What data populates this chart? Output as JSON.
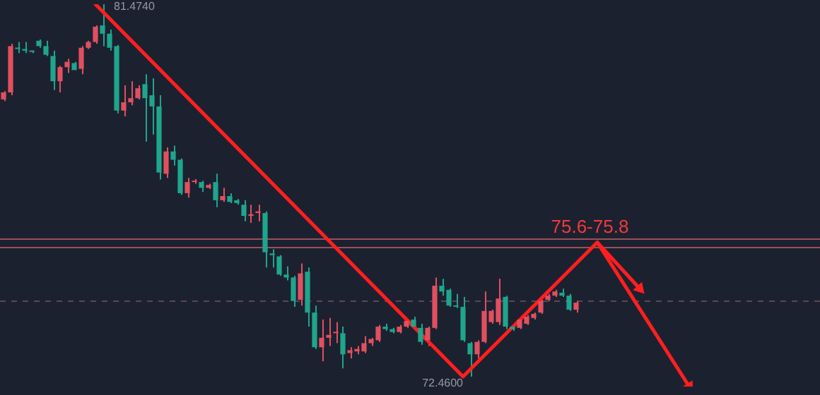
{
  "chart_data": {
    "type": "candlestick",
    "tick_labels": false,
    "categories": [
      null,
      null,
      null,
      null,
      null,
      null,
      null,
      null,
      null,
      null,
      null,
      null,
      null,
      null,
      null,
      null,
      null,
      null,
      null,
      null,
      null,
      null,
      null,
      null,
      null,
      null,
      null,
      null,
      null,
      null,
      null,
      null,
      null,
      null,
      null,
      null,
      null,
      null,
      null,
      null,
      null,
      null,
      null,
      null,
      null,
      null,
      null,
      null,
      null,
      null,
      null,
      null,
      null,
      null,
      null,
      null,
      null,
      null,
      null,
      null,
      null,
      null,
      null,
      null,
      null,
      null,
      null,
      null,
      null,
      null,
      null,
      null,
      null,
      null,
      null,
      null,
      null,
      null,
      null,
      null,
      null,
      null,
      null,
      null,
      null,
      null,
      null,
      null,
      null,
      null,
      null,
      null,
      null,
      null,
      null,
      null,
      null,
      null,
      null,
      null,
      null,
      null,
      null,
      null,
      null,
      null,
      null,
      null,
      null,
      null,
      null,
      null,
      null,
      null,
      null,
      null
    ],
    "ohlc": [
      [
        79.17,
        79.37,
        79.13,
        79.34
      ],
      [
        79.34,
        80.52,
        79.27,
        80.46
      ],
      [
        80.42,
        80.56,
        80.29,
        80.39
      ],
      [
        80.39,
        80.56,
        80.29,
        80.35
      ],
      [
        80.35,
        80.35,
        80.29,
        80.32
      ],
      [
        80.59,
        80.62,
        80.42,
        80.46
      ],
      [
        80.46,
        80.59,
        80.22,
        80.25
      ],
      [
        80.22,
        80.35,
        79.4,
        79.61
      ],
      [
        79.61,
        79.98,
        79.34,
        79.95
      ],
      [
        79.95,
        80.15,
        79.81,
        80.08
      ],
      [
        80.05,
        80.08,
        79.88,
        79.88
      ],
      [
        79.91,
        80.46,
        79.78,
        80.42
      ],
      [
        80.42,
        80.59,
        80.39,
        80.56
      ],
      [
        80.56,
        80.96,
        80.52,
        80.93
      ],
      [
        80.96,
        81.474,
        80.46,
        80.76
      ],
      [
        80.76,
        80.86,
        80.35,
        80.42
      ],
      [
        80.46,
        80.49,
        78.83,
        78.9
      ],
      [
        78.9,
        79.51,
        78.76,
        79.1
      ],
      [
        79.1,
        79.61,
        79.03,
        79.2
      ],
      [
        79.2,
        79.51,
        79.17,
        79.44
      ],
      [
        79.54,
        79.78,
        78.15,
        79.2
      ],
      [
        79.27,
        79.68,
        78.32,
        79.0
      ],
      [
        79.0,
        79.27,
        77.23,
        77.4
      ],
      [
        77.37,
        78.01,
        77.27,
        77.91
      ],
      [
        77.91,
        78.05,
        77.57,
        77.71
      ],
      [
        77.71,
        77.74,
        76.86,
        76.9
      ],
      [
        76.9,
        77.27,
        76.79,
        77.17
      ],
      [
        77.17,
        77.24,
        77.13,
        77.2
      ],
      [
        77.17,
        77.2,
        76.93,
        77.03
      ],
      [
        77.03,
        77.13,
        77.0,
        77.1
      ],
      [
        77.17,
        77.37,
        76.56,
        76.73
      ],
      [
        76.73,
        77.03,
        76.69,
        76.83
      ],
      [
        76.83,
        76.9,
        76.66,
        76.69
      ],
      [
        76.73,
        76.76,
        76.62,
        76.66
      ],
      [
        76.62,
        76.73,
        76.22,
        76.35
      ],
      [
        76.35,
        76.62,
        76.18,
        76.39
      ],
      [
        76.42,
        76.62,
        76.22,
        76.46
      ],
      [
        76.42,
        76.46,
        75.1,
        75.47
      ],
      [
        75.44,
        75.54,
        75.1,
        75.4
      ],
      [
        75.37,
        75.4,
        74.9,
        74.93
      ],
      [
        74.93,
        75.13,
        74.79,
        74.86
      ],
      [
        74.86,
        74.9,
        74.15,
        74.29
      ],
      [
        74.32,
        75.2,
        74.18,
        74.96
      ],
      [
        75.0,
        75.1,
        73.67,
        74.01
      ],
      [
        74.01,
        74.18,
        73.13,
        73.17
      ],
      [
        73.17,
        73.84,
        72.83,
        73.4
      ],
      [
        73.4,
        73.88,
        73.2,
        73.47
      ],
      [
        73.51,
        73.78,
        73.27,
        73.54
      ],
      [
        73.51,
        73.67,
        72.66,
        73.0
      ],
      [
        73.03,
        73.17,
        72.9,
        73.1
      ],
      [
        73.07,
        73.2,
        73.0,
        73.13
      ],
      [
        73.07,
        73.44,
        73.03,
        73.27
      ],
      [
        73.27,
        73.4,
        73.2,
        73.37
      ],
      [
        73.34,
        73.71,
        73.3,
        73.67
      ],
      [
        73.67,
        73.74,
        73.57,
        73.61
      ],
      [
        73.61,
        73.64,
        73.51,
        73.54
      ],
      [
        73.54,
        73.71,
        73.51,
        73.67
      ],
      [
        73.67,
        73.84,
        73.64,
        73.81
      ],
      [
        73.84,
        73.91,
        73.61,
        73.67
      ],
      [
        73.64,
        73.74,
        73.23,
        73.3
      ],
      [
        73.34,
        73.67,
        73.2,
        73.64
      ],
      [
        73.64,
        74.86,
        73.61,
        74.66
      ],
      [
        74.66,
        74.83,
        74.42,
        74.52
      ],
      [
        74.56,
        74.59,
        74.15,
        74.18
      ],
      [
        74.18,
        74.46,
        74.12,
        74.15
      ],
      [
        74.15,
        74.39,
        73.3,
        73.34
      ],
      [
        73.27,
        73.3,
        72.46,
        73.0
      ],
      [
        73.0,
        73.34,
        72.9,
        73.3
      ],
      [
        73.3,
        74.52,
        73.27,
        74.05
      ],
      [
        73.78,
        74.08,
        73.74,
        74.05
      ],
      [
        73.78,
        74.83,
        73.71,
        74.35
      ],
      [
        74.39,
        74.42,
        73.61,
        73.67
      ],
      [
        73.67,
        73.71,
        73.57,
        73.61
      ],
      [
        73.64,
        73.88,
        73.61,
        73.84
      ],
      [
        73.74,
        73.95,
        73.71,
        73.91
      ],
      [
        73.88,
        74.01,
        73.84,
        73.98
      ],
      [
        74.01,
        74.32,
        73.98,
        74.29
      ],
      [
        74.32,
        74.46,
        74.29,
        74.42
      ],
      [
        74.42,
        74.56,
        74.39,
        74.52
      ],
      [
        74.49,
        74.59,
        74.39,
        74.42
      ],
      [
        74.42,
        74.46,
        74.05,
        74.08
      ],
      [
        74.08,
        74.29,
        74.01,
        74.25
      ],
      null,
      null,
      null,
      null,
      null,
      null,
      null,
      null,
      null,
      null,
      null,
      null,
      null,
      null,
      null,
      null,
      null,
      null,
      null,
      null,
      null,
      null,
      null,
      null,
      null,
      null,
      null,
      null,
      null,
      null,
      null,
      null,
      null,
      null
    ],
    "colors": [
      "#e0505f",
      "#e0505f",
      "#1fa58c",
      "#1fa58c",
      "#1fa58c",
      "#1fa58c",
      "#1fa58c",
      "#1fa58c",
      "#e0505f",
      "#e0505f",
      "#1fa58c",
      "#e0505f",
      "#e0505f",
      "#e0505f",
      "#1fa58c",
      "#1fa58c",
      "#1fa58c",
      "#e0505f",
      "#e0505f",
      "#e0505f",
      "#1fa58c",
      "#1fa58c",
      "#1fa58c",
      "#e0505f",
      "#1fa58c",
      "#1fa58c",
      "#e0505f",
      "#e0505f",
      "#1fa58c",
      "#e0505f",
      "#1fa58c",
      "#e0505f",
      "#1fa58c",
      "#1fa58c",
      "#1fa58c",
      "#e0505f",
      "#e0505f",
      "#1fa58c",
      "#1fa58c",
      "#1fa58c",
      "#1fa58c",
      "#1fa58c",
      "#e0505f",
      "#1fa58c",
      "#1fa58c",
      "#e0505f",
      "#e0505f",
      "#e0505f",
      "#1fa58c",
      "#e0505f",
      "#e0505f",
      "#e0505f",
      "#e0505f",
      "#e0505f",
      "#1fa58c",
      "#1fa58c",
      "#e0505f",
      "#e0505f",
      "#1fa58c",
      "#1fa58c",
      "#e0505f",
      "#e0505f",
      "#1fa58c",
      "#1fa58c",
      "#1fa58c",
      "#1fa58c",
      "#1fa58c",
      "#e0505f",
      "#e0505f",
      "#e0505f",
      "#e0505f",
      "#1fa58c",
      "#1fa58c",
      "#e0505f",
      "#e0505f",
      "#e0505f",
      "#e0505f",
      "#e0505f",
      "#e0505f",
      "#1fa58c",
      "#1fa58c",
      "#e0505f",
      null,
      null,
      null,
      null,
      null,
      null,
      null,
      null,
      null,
      null,
      null,
      null,
      null,
      null,
      null,
      null,
      null,
      null,
      null,
      null,
      null,
      null,
      null,
      null,
      null,
      null,
      null,
      null,
      null,
      null,
      null,
      null,
      null,
      null
    ],
    "series": [
      {
        "type": "line",
        "color": "#ff1f1f",
        "values": [
          null,
          null,
          null,
          null,
          null,
          null,
          null,
          null,
          null,
          null,
          null,
          null,
          null,
          81.474,
          null,
          null,
          null,
          null,
          null,
          null,
          null,
          null,
          null,
          null,
          null,
          null,
          null,
          null,
          null,
          null,
          null,
          null,
          null,
          null,
          null,
          null,
          null,
          null,
          null,
          null,
          null,
          null,
          null,
          null,
          null,
          null,
          null,
          null,
          null,
          null,
          null,
          null,
          null,
          null,
          null,
          null,
          null,
          null,
          null,
          null,
          null,
          null,
          null,
          null,
          null,
          72.46,
          null,
          null,
          null,
          null,
          null,
          null,
          null,
          null,
          null,
          null,
          null,
          null,
          null,
          null,
          null,
          null,
          null,
          null,
          75.71,
          null,
          null,
          null,
          null,
          null,
          null,
          null,
          null,
          null,
          null,
          null,
          null,
          72.22,
          null,
          null,
          null,
          null,
          null,
          null,
          null,
          null,
          null,
          null,
          null,
          null,
          null,
          null,
          null,
          null,
          null,
          null
        ]
      },
      {
        "type": "line",
        "color": "#ff1f1f",
        "values": [
          null,
          null,
          null,
          null,
          null,
          null,
          null,
          null,
          null,
          null,
          null,
          null,
          null,
          null,
          null,
          null,
          null,
          null,
          null,
          null,
          null,
          null,
          null,
          null,
          null,
          null,
          null,
          null,
          null,
          null,
          null,
          null,
          null,
          null,
          null,
          null,
          null,
          null,
          null,
          null,
          null,
          null,
          null,
          null,
          null,
          null,
          null,
          null,
          null,
          null,
          null,
          null,
          null,
          null,
          null,
          null,
          null,
          null,
          null,
          null,
          null,
          null,
          null,
          null,
          null,
          null,
          null,
          null,
          null,
          null,
          null,
          null,
          null,
          null,
          null,
          null,
          null,
          null,
          null,
          null,
          null,
          null,
          null,
          null,
          75.71,
          null,
          null,
          null,
          null,
          null,
          74.59,
          null,
          null,
          null,
          null,
          null,
          null,
          null,
          null,
          null,
          null,
          null,
          null,
          null,
          null,
          null,
          null,
          null,
          null,
          null,
          null,
          null,
          null,
          null,
          null,
          null
        ]
      }
    ],
    "ref_lines": [
      {
        "axis": "y",
        "value": 75.8,
        "color": "#9a5058"
      },
      {
        "axis": "y",
        "value": 75.6,
        "color": "#9a5058"
      },
      {
        "axis": "y",
        "value": 74.29,
        "color": "#5e4650",
        "line_style": "dashed"
      }
    ],
    "annotations": [
      "81.4740",
      "72.4600",
      {
        "text": "75.6-75.8",
        "y": 75.8
      }
    ]
  }
}
